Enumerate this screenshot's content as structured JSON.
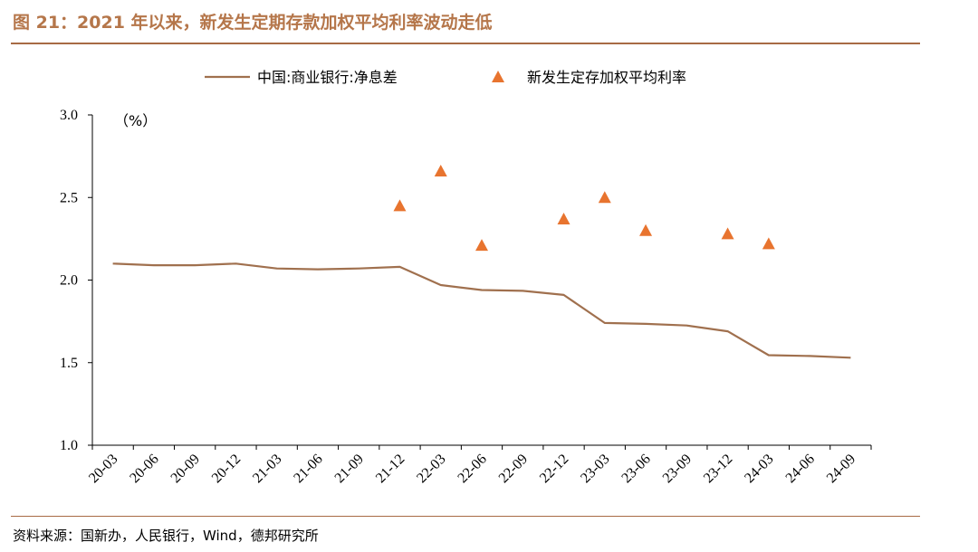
{
  "figure": {
    "title": "图 21：2021 年以来，新发生定期存款加权平均利率波动走低",
    "source": "资料来源：国新办，人民银行，Wind，德邦研究所"
  },
  "colors": {
    "title": "#b5764a",
    "rule": "#a76a44",
    "line": "#a0704e",
    "triangle": "#e8742f"
  },
  "chart_data": {
    "type": "line",
    "unit_label": "（%）",
    "ylim": [
      1.0,
      3.0
    ],
    "yticks": [
      "1.0",
      "1.5",
      "2.0",
      "2.5",
      "3.0"
    ],
    "categories": [
      "20-03",
      "20-06",
      "20-09",
      "20-12",
      "21-03",
      "21-06",
      "21-09",
      "21-12",
      "22-03",
      "22-06",
      "22-09",
      "22-12",
      "23-03",
      "23-06",
      "23-09",
      "23-12",
      "24-03",
      "24-06",
      "24-09"
    ],
    "legend_position": "top",
    "series": [
      {
        "name": "中国:商业银行:净息差",
        "kind": "line",
        "values": [
          2.1,
          2.09,
          2.09,
          2.1,
          2.07,
          2.065,
          2.07,
          2.08,
          1.97,
          1.94,
          1.935,
          1.91,
          1.74,
          1.735,
          1.725,
          1.69,
          1.545,
          1.54,
          1.53
        ]
      },
      {
        "name": "新发生定存加权平均利率",
        "kind": "marker-triangle",
        "values": [
          null,
          null,
          null,
          null,
          null,
          null,
          null,
          2.45,
          2.66,
          2.21,
          null,
          2.37,
          2.5,
          2.3,
          null,
          2.28,
          2.22,
          null,
          null
        ]
      }
    ]
  }
}
